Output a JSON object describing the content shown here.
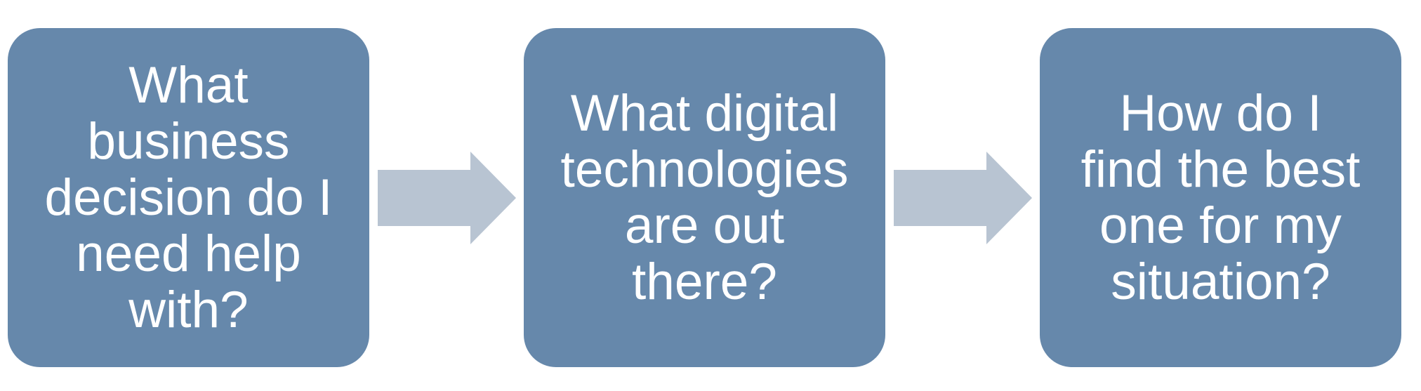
{
  "colors": {
    "box_fill": "#6688ab",
    "box_text": "#ffffff",
    "arrow_fill": "#b8c4d2",
    "background": "#ffffff"
  },
  "steps": [
    {
      "label": "What\nbusiness\ndecision do I\nneed help\nwith?"
    },
    {
      "label": "What digital\ntechnologies\nare out\nthere?"
    },
    {
      "label": "How do I\nfind the best\none for my\nsituation?"
    }
  ],
  "arrows": [
    {
      "icon": "right-arrow-icon"
    },
    {
      "icon": "right-arrow-icon"
    }
  ]
}
